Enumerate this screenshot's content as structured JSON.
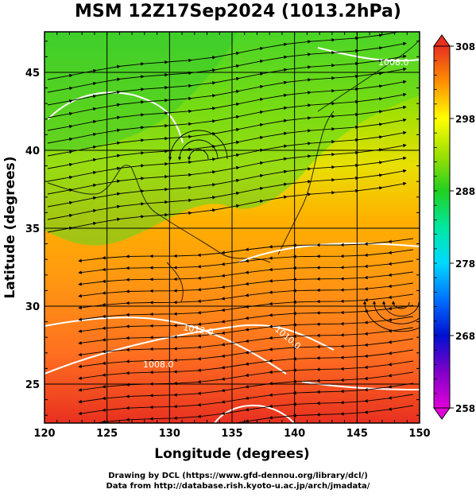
{
  "title": "MSM 12Z17Sep2024 (1013.2hPa)",
  "chart_data": {
    "type": "heatmap",
    "title": "MSM 12Z17Sep2024 (1013.2hPa)",
    "xlabel": "Longitude (degrees)",
    "ylabel": "Latitude  (degrees)",
    "xlim": [
      120,
      150
    ],
    "ylim": [
      22.5,
      47.6
    ],
    "xticks": [
      "120",
      "125",
      "130",
      "135",
      "140",
      "145",
      "150"
    ],
    "yticks": [
      "25",
      "30",
      "35",
      "40",
      "45"
    ],
    "grid": true,
    "colorbar": {
      "min": 258,
      "max": 308,
      "ticks": [
        "308",
        "298",
        "288",
        "278",
        "268",
        "258"
      ],
      "colors": [
        "#d400d4",
        "#2a00c8",
        "#0070ff",
        "#00d4ff",
        "#00e890",
        "#20c020",
        "#a8e000",
        "#ffff00",
        "#ffc000",
        "#ff8000",
        "#e83020"
      ]
    },
    "contour_labels": [
      "1012.0",
      "1010.0",
      "1008.0",
      "1008.0"
    ],
    "stations_icon": "streamline-arrows"
  },
  "footer": {
    "line1": "Drawing by DCL (https://www.gfd-dennou.org/library/dcl/)",
    "line2": "Data from http://database.rish.kyoto-u.ac.jp/arch/jmadata/"
  }
}
